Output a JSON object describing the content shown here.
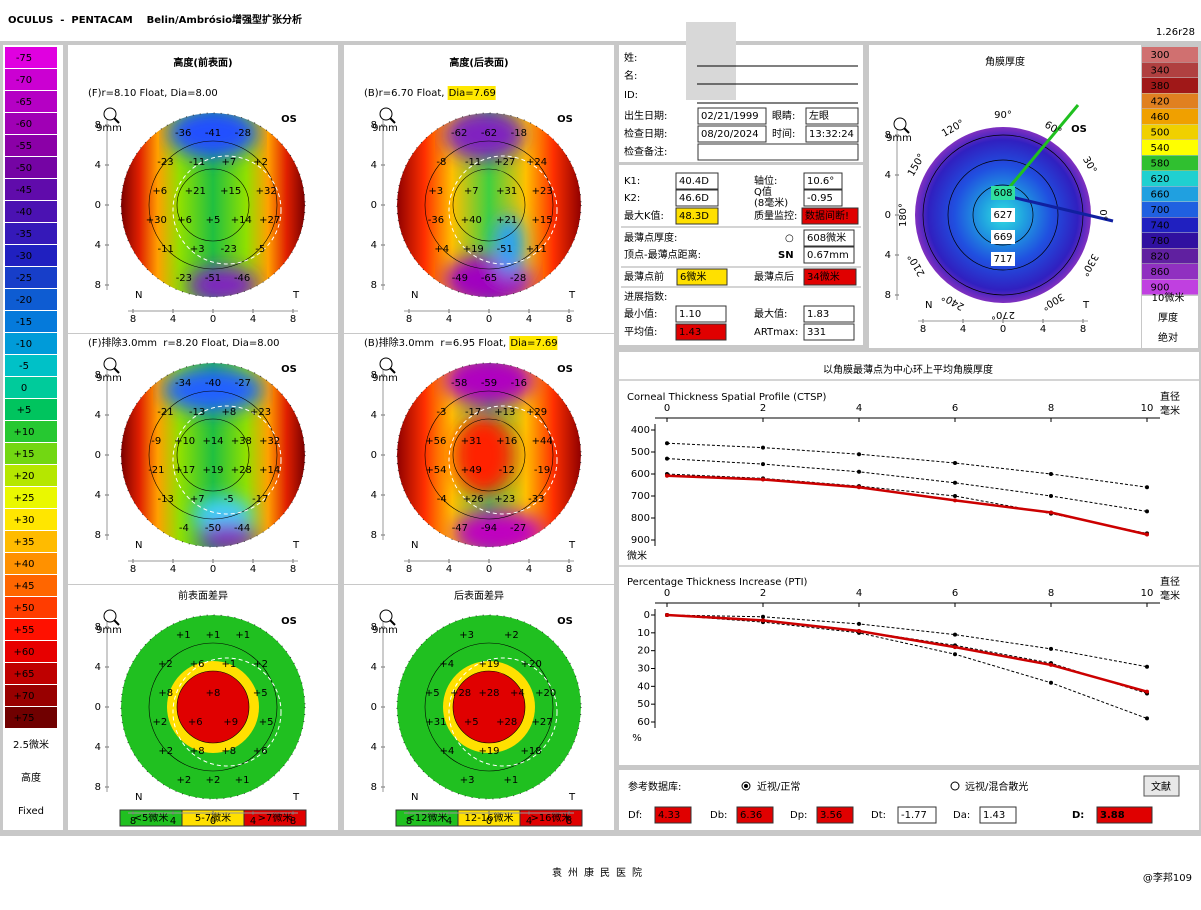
{
  "header": {
    "title": "OCULUS  -  PENTACAM    Belin/Ambrósio增强型扩张分析",
    "version": "1.26r28"
  },
  "scale": {
    "labels": [
      "-75",
      "-70",
      "-65",
      "-60",
      "-55",
      "-50",
      "-45",
      "-40",
      "-35",
      "-30",
      "-25",
      "-20",
      "-15",
      "-10",
      "-5",
      "0",
      "+5",
      "+10",
      "+15",
      "+20",
      "+25",
      "+30",
      "+35",
      "+40",
      "+45",
      "+50",
      "+55",
      "+60",
      "+65",
      "+70",
      "+75"
    ],
    "step": "2.5微米",
    "kind": "高度",
    "mode": "Fixed"
  },
  "map_axis": {
    "ticks": [
      "8",
      "4",
      "0",
      "4",
      "8"
    ],
    "nasal": "N",
    "temporal": "T",
    "eye": "OS",
    "zoom": "9mm"
  },
  "maps": [
    {
      "title": "高度(前表面)",
      "subtitle": "(F)r=8.10 Float, Dia=8.00",
      "labels": [
        "-36",
        "-41",
        "-28",
        "-23",
        "-11",
        "+7",
        "+2",
        "+6",
        "+21",
        "+15",
        "+32",
        "+30",
        "+6",
        "+5",
        "+14",
        "+27",
        "-11",
        "+3",
        "-23",
        "-5",
        "-23",
        "-51",
        "-46"
      ]
    },
    {
      "title": "高度(后表面)",
      "subtitle": "(B)r=6.70 Float, ",
      "highlight": "Dia=7.69",
      "labels": [
        "-62",
        "-62",
        "-18",
        "-8",
        "-11",
        "+27",
        "+24",
        "+3",
        "+7",
        "+31",
        "+23",
        "-36",
        "+40",
        "+21",
        "+15",
        "+4",
        "+19",
        "-51",
        "+11",
        "-49",
        "-65",
        "-28"
      ]
    },
    {
      "subtitle": "(F)排除3.0mm  r=8.20 Float, Dia=8.00",
      "labels": [
        "-34",
        "-40",
        "-27",
        "-21",
        "-13",
        "+8",
        "+23",
        "-9",
        "+10",
        "+14",
        "+38",
        "+32",
        "-21",
        "+17",
        "+19",
        "+28",
        "+14",
        "-13",
        "+7",
        "-5",
        "-17",
        "-4",
        "-50",
        "-44"
      ]
    },
    {
      "subtitle": "(B)排除3.0mm  r=6.95 Float, ",
      "highlight": "Dia=7.69",
      "labels": [
        "-58",
        "-59",
        "-16",
        "-3",
        "-17",
        "+13",
        "+29",
        "+56",
        "+31",
        "+16",
        "+44",
        "+54",
        "+49",
        "-12",
        "-19",
        "-4",
        "+26",
        "+23",
        "-33",
        "-47",
        "-94",
        "-27"
      ]
    },
    {
      "title": "前表面差异",
      "labels": [
        "+1",
        "+1",
        "+1",
        "+2",
        "+6",
        "+1",
        "+2",
        "+8",
        "+8",
        "+5",
        "+2",
        "+6",
        "+9",
        "+5",
        "+2",
        "+8",
        "+8",
        "+6",
        "+2",
        "+2",
        "+1"
      ],
      "legend": [
        "<5微米",
        "5-7微米",
        ">7微米"
      ]
    },
    {
      "title": "后表面差异",
      "labels": [
        "+3",
        "+2",
        "+4",
        "+19",
        "+20",
        "+5",
        "+28",
        "+28",
        "+4",
        "+20",
        "+31",
        "+5",
        "+28",
        "+27",
        "+4",
        "+19",
        "+18",
        "+3",
        "+1"
      ],
      "legend": [
        "<12微米",
        "12-16微米",
        ">16微米"
      ]
    }
  ],
  "patient": {
    "surname": "姓:",
    "name": "名:",
    "id": "ID:",
    "dob_label": "出生日期:",
    "dob": "02/21/1999",
    "eye_label": "眼睛:",
    "eye": "左眼",
    "exam_label": "检查日期:",
    "exam": "08/20/2024",
    "time_label": "时间:",
    "time": "13:32:24",
    "note_label": "检查备注:"
  },
  "kvalues": {
    "k1_label": "K1:",
    "k1": "40.4D",
    "axis_label": "轴位:",
    "axis": "10.6°",
    "k2_label": "K2:",
    "k2": "46.6D",
    "q_label": "Q值",
    "q_sub": "(8毫米)",
    "q": "-0.95",
    "kmax_label": "最大K值:",
    "kmax": "48.3D",
    "qs_label": "质量监控:",
    "qs": "数据间断!",
    "thin_label": "最薄点厚度:",
    "thin_mark": "○",
    "thin": "608微米",
    "dist_label": "顶点-最薄点距离:",
    "dist_dir": "SN",
    "dist": "0.67mm",
    "front_label": "最薄点前",
    "front": "6微米",
    "back_label": "最薄点后",
    "back": "34微米",
    "prog_label": "进展指数:",
    "min_label": "最小值:",
    "min": "1.10",
    "max_label": "最大值:",
    "max": "1.83",
    "avg_label": "平均值:",
    "avg": "1.43",
    "art_label": "ARTmax:",
    "art": "331"
  },
  "thickness": {
    "title": "角膜厚度",
    "scale": [
      "300",
      "340",
      "380",
      "420",
      "460",
      "500",
      "540",
      "580",
      "620",
      "660",
      "700",
      "740",
      "780",
      "820",
      "860",
      "900"
    ],
    "step": "10微米",
    "kind": "厚度",
    "mode": "绝对",
    "labels": [
      "608",
      "627",
      "669",
      "717"
    ],
    "angles": [
      "90°",
      "60°",
      "30°",
      "0°",
      "330°",
      "300°",
      "270°",
      "240°",
      "210°",
      "180°",
      "150°",
      "120°"
    ]
  },
  "profile": {
    "title": "以角膜最薄点为中心环上平均角膜厚度",
    "x_label": "直径",
    "x_unit": "毫米"
  },
  "ctsp": {
    "type": "line",
    "title": "Corneal Thickness Spatial Profile (CTSP)",
    "y_unit": "微米",
    "x": [
      0,
      2,
      4,
      6,
      8,
      10
    ],
    "xlim": [
      0,
      10
    ],
    "xticks": [
      0,
      2,
      4,
      6,
      8,
      10
    ],
    "ylim": [
      400,
      900
    ],
    "yticks": [
      400,
      500,
      600,
      700,
      800,
      900
    ],
    "y_inverted": true,
    "series": [
      {
        "color": "#000000",
        "style": "dashed",
        "values": [
          460,
          480,
          510,
          550,
          600,
          660
        ]
      },
      {
        "color": "#000000",
        "style": "dashed",
        "values": [
          530,
          555,
          590,
          640,
          700,
          770
        ]
      },
      {
        "color": "#000000",
        "style": "dashed",
        "values": [
          600,
          620,
          655,
          700,
          780,
          870
        ]
      },
      {
        "color": "#cc0000",
        "style": "solid",
        "values": [
          608,
          625,
          660,
          720,
          775,
          875
        ]
      }
    ]
  },
  "pti": {
    "type": "line",
    "title": "Percentage Thickness Increase (PTI)",
    "y_unit": "%",
    "x": [
      0,
      2,
      4,
      6,
      8,
      10
    ],
    "xlim": [
      0,
      10
    ],
    "xticks": [
      0,
      2,
      4,
      6,
      8,
      10
    ],
    "ylim": [
      0,
      60
    ],
    "yticks": [
      0,
      10,
      20,
      30,
      40,
      50,
      60
    ],
    "y_inverted": true,
    "series": [
      {
        "color": "#000000",
        "style": "dashed",
        "values": [
          0,
          1,
          5,
          11,
          19,
          29
        ]
      },
      {
        "color": "#000000",
        "style": "dashed",
        "values": [
          0,
          3,
          9,
          17,
          27,
          44
        ]
      },
      {
        "color": "#000000",
        "style": "dashed",
        "values": [
          0,
          4,
          10,
          22,
          38,
          58
        ]
      },
      {
        "color": "#cc0000",
        "style": "solid",
        "values": [
          0,
          3,
          9,
          18,
          28,
          43
        ]
      }
    ]
  },
  "bottom": {
    "db_label": "参考数据库:",
    "normal": "近视/正常",
    "hyper": "远视/混合散光",
    "refs": "文献",
    "df_label": "Df:",
    "df": "4.33",
    "db2_label": "Db:",
    "db": "6.36",
    "dp_label": "Dp:",
    "dp": "3.56",
    "dt_label": "Dt:",
    "dt": "-1.77",
    "da_label": "Da:",
    "da": "1.43",
    "d_label": "D:",
    "d": "3.88"
  },
  "footer": {
    "hospital": "袁州康民医院",
    "watermark": "@李邦109"
  }
}
